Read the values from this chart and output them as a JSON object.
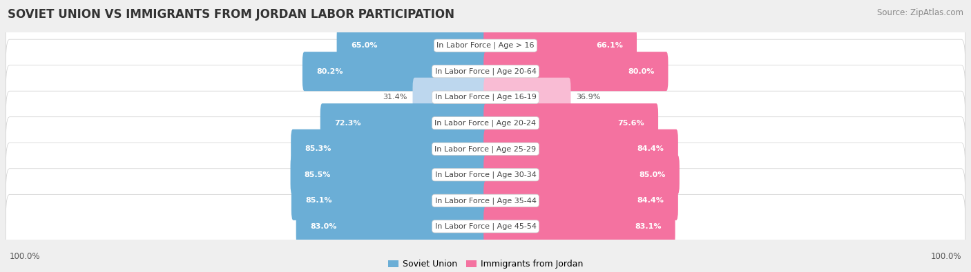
{
  "title": "SOVIET UNION VS IMMIGRANTS FROM JORDAN LABOR PARTICIPATION",
  "source": "Source: ZipAtlas.com",
  "categories": [
    "In Labor Force | Age > 16",
    "In Labor Force | Age 20-64",
    "In Labor Force | Age 16-19",
    "In Labor Force | Age 20-24",
    "In Labor Force | Age 25-29",
    "In Labor Force | Age 30-34",
    "In Labor Force | Age 35-44",
    "In Labor Force | Age 45-54"
  ],
  "soviet_values": [
    65.0,
    80.2,
    31.4,
    72.3,
    85.3,
    85.5,
    85.1,
    83.0
  ],
  "jordan_values": [
    66.1,
    80.0,
    36.9,
    75.6,
    84.4,
    85.0,
    84.4,
    83.1
  ],
  "soviet_color": "#6BAED6",
  "soviet_color_light": "#BDD7EE",
  "jordan_color": "#F472A0",
  "jordan_color_light": "#F9BCD4",
  "bg_color": "#EFEFEF",
  "row_bg": "#FFFFFF",
  "row_shadow": "#DDDDDD",
  "bar_height": 0.72,
  "max_value": 100.0,
  "legend_soviet": "Soviet Union",
  "legend_jordan": "Immigrants from Jordan",
  "title_fontsize": 12,
  "source_fontsize": 8.5,
  "label_fontsize": 8,
  "value_fontsize": 8
}
